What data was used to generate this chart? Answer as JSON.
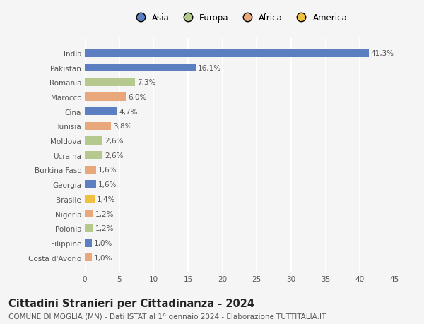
{
  "categories": [
    "Costa d'Avorio",
    "Filippine",
    "Polonia",
    "Nigeria",
    "Brasile",
    "Georgia",
    "Burkina Faso",
    "Ucraina",
    "Moldova",
    "Tunisia",
    "Cina",
    "Marocco",
    "Romania",
    "Pakistan",
    "India"
  ],
  "values": [
    1.0,
    1.0,
    1.2,
    1.2,
    1.4,
    1.6,
    1.6,
    2.6,
    2.6,
    3.8,
    4.7,
    6.0,
    7.3,
    16.1,
    41.3
  ],
  "labels": [
    "1,0%",
    "1,0%",
    "1,2%",
    "1,2%",
    "1,4%",
    "1,6%",
    "1,6%",
    "2,6%",
    "2,6%",
    "3,8%",
    "4,7%",
    "6,0%",
    "7,3%",
    "16,1%",
    "41,3%"
  ],
  "colors": [
    "#e8a87c",
    "#5b7fc0",
    "#b5c98e",
    "#e8a87c",
    "#f0c040",
    "#5b7fc0",
    "#e8a87c",
    "#b5c98e",
    "#b5c98e",
    "#e8a87c",
    "#5b7fc0",
    "#e8a87c",
    "#b5c98e",
    "#5b7fc0",
    "#5b7fc0"
  ],
  "legend_labels": [
    "Asia",
    "Europa",
    "Africa",
    "America"
  ],
  "legend_colors": [
    "#5b7fc0",
    "#b5c98e",
    "#e8a87c",
    "#f0c040"
  ],
  "title": "Cittadini Stranieri per Cittadinanza - 2024",
  "subtitle": "COMUNE DI MOGLIA (MN) - Dati ISTAT al 1° gennaio 2024 - Elaborazione TUTTITALIA.IT",
  "xlim": [
    0,
    45
  ],
  "xticks": [
    0,
    5,
    10,
    15,
    20,
    25,
    30,
    35,
    40,
    45
  ],
  "background_color": "#f5f5f5",
  "grid_color": "#ffffff",
  "bar_height": 0.55,
  "title_fontsize": 10.5,
  "subtitle_fontsize": 7.5,
  "label_fontsize": 7.5,
  "tick_fontsize": 7.5,
  "legend_fontsize": 8.5
}
